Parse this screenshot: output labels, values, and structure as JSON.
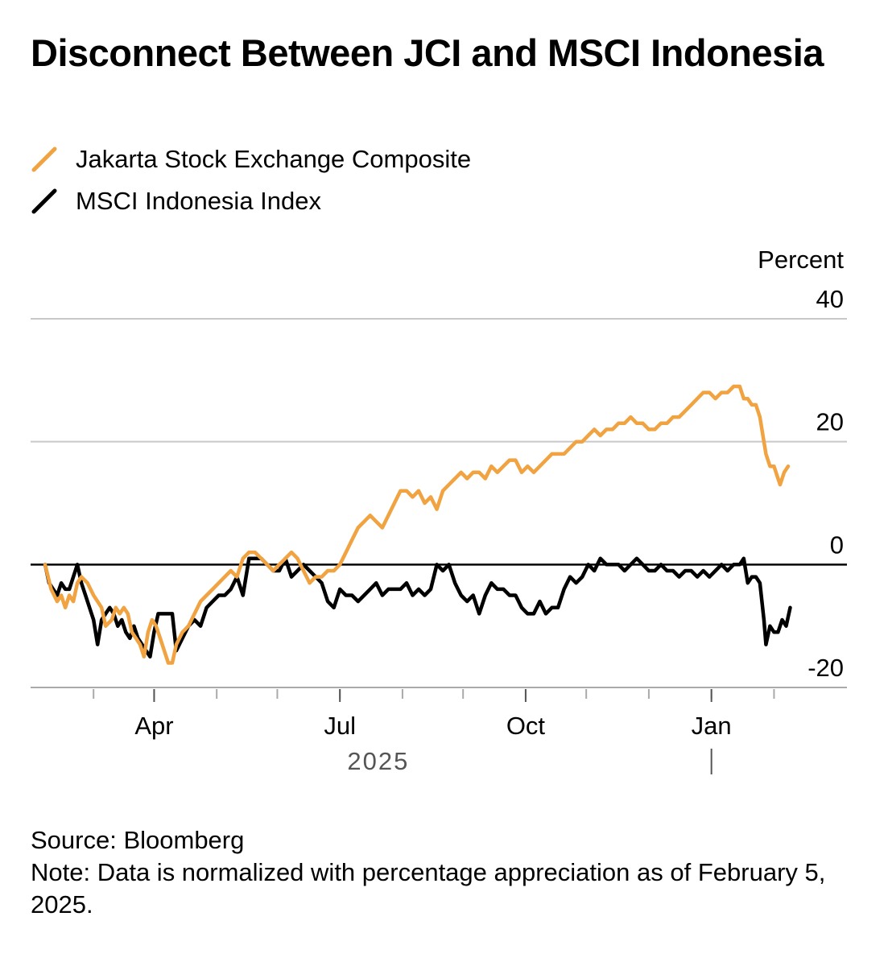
{
  "title": "Disconnect Between JCI and MSCI Indonesia",
  "legend": [
    {
      "label": "Jakarta Stock Exchange Composite",
      "color": "#f0a340"
    },
    {
      "label": "MSCI Indonesia Index",
      "color": "#000000"
    }
  ],
  "footer": {
    "source": "Source: Bloomberg",
    "note": "Note: Data is normalized with percentage appreciation as of February 5, 2025."
  },
  "chart_data": {
    "type": "line",
    "title": "Disconnect Between JCI and MSCI Indonesia",
    "ylabel": "Percent",
    "xlabel": "2025",
    "ylim": [
      -20,
      40
    ],
    "yticks": [
      40,
      20,
      0,
      -20
    ],
    "xlim": [
      0,
      370
    ],
    "x_unit": "days since Feb 5, 2025",
    "grid": true,
    "month_ticks": [
      24,
      54,
      85,
      115,
      146,
      177,
      207,
      238,
      268,
      299,
      330,
      361
    ],
    "x_tick_labels": [
      {
        "label": "Apr",
        "x": 54
      },
      {
        "label": "Jul",
        "x": 146
      },
      {
        "label": "Oct",
        "x": 238
      },
      {
        "label": "Jan",
        "x": 330
      }
    ],
    "year_label": {
      "label": "2025",
      "x": 165
    },
    "year_divider_x": 330,
    "series": [
      {
        "name": "Jakarta Stock Exchange Composite",
        "color": "#f0a340",
        "x": [
          0,
          3,
          6,
          8,
          10,
          12,
          14,
          16,
          18,
          21,
          24,
          26,
          28,
          30,
          33,
          35,
          37,
          39,
          41,
          43,
          45,
          47,
          49,
          51,
          53,
          55,
          57,
          59,
          61,
          63,
          65,
          68,
          71,
          74,
          77,
          80,
          83,
          86,
          89,
          92,
          95,
          98,
          101,
          104,
          107,
          110,
          113,
          116,
          119,
          122,
          125,
          128,
          131,
          134,
          137,
          140,
          143,
          146,
          149,
          152,
          155,
          158,
          161,
          164,
          167,
          170,
          173,
          176,
          179,
          182,
          185,
          188,
          191,
          194,
          197,
          200,
          203,
          206,
          209,
          212,
          215,
          218,
          221,
          224,
          227,
          230,
          233,
          236,
          239,
          242,
          245,
          248,
          251,
          254,
          257,
          260,
          263,
          266,
          269,
          272,
          275,
          278,
          281,
          284,
          287,
          290,
          293,
          296,
          299,
          302,
          305,
          308,
          311,
          314,
          317,
          320,
          323,
          326,
          329,
          332,
          335,
          338,
          341,
          344,
          346,
          348,
          350,
          352,
          354,
          356,
          357,
          359,
          361,
          363,
          364,
          366,
          368
        ],
        "values": [
          0,
          -4,
          -6,
          -5,
          -7,
          -5,
          -6,
          -3,
          -2,
          -3,
          -5,
          -6,
          -7,
          -10,
          -9,
          -7,
          -8,
          -7,
          -8,
          -11,
          -12,
          -13,
          -15,
          -11,
          -9,
          -10,
          -12,
          -14,
          -16,
          -16,
          -13,
          -11,
          -10,
          -8,
          -6,
          -5,
          -4,
          -3,
          -2,
          -1,
          -2,
          1,
          2,
          2,
          1,
          0,
          -1,
          0,
          1,
          2,
          1,
          -1,
          -3,
          -2,
          -2,
          -1,
          -1,
          0,
          2,
          4,
          6,
          7,
          8,
          7,
          6,
          8,
          10,
          12,
          12,
          11,
          12,
          10,
          11,
          9,
          12,
          13,
          14,
          15,
          14,
          15,
          15,
          14,
          16,
          15,
          16,
          17,
          17,
          15,
          16,
          15,
          16,
          17,
          18,
          18,
          18,
          19,
          20,
          20,
          21,
          22,
          21,
          22,
          22,
          23,
          23,
          24,
          23,
          23,
          22,
          22,
          23,
          23,
          24,
          24,
          25,
          26,
          27,
          28,
          28,
          27,
          28,
          28,
          29,
          29,
          27,
          27,
          26,
          26,
          24,
          20,
          18,
          16,
          16,
          14,
          13,
          15,
          16
        ]
      },
      {
        "name": "MSCI Indonesia Index",
        "color": "#000000",
        "x": [
          0,
          2,
          4,
          6,
          8,
          10,
          12,
          14,
          16,
          18,
          20,
          22,
          24,
          26,
          28,
          30,
          32,
          34,
          36,
          38,
          40,
          42,
          44,
          46,
          48,
          50,
          52,
          54,
          56,
          58,
          60,
          62,
          63,
          65,
          68,
          71,
          74,
          77,
          80,
          83,
          86,
          89,
          92,
          95,
          98,
          101,
          104,
          107,
          110,
          113,
          116,
          119,
          122,
          125,
          128,
          131,
          134,
          137,
          140,
          143,
          146,
          149,
          152,
          155,
          158,
          161,
          164,
          167,
          170,
          173,
          176,
          179,
          182,
          185,
          188,
          191,
          194,
          197,
          200,
          203,
          206,
          209,
          212,
          215,
          218,
          221,
          224,
          227,
          230,
          233,
          236,
          239,
          242,
          245,
          248,
          251,
          254,
          257,
          260,
          263,
          266,
          269,
          272,
          275,
          278,
          281,
          284,
          287,
          290,
          293,
          296,
          299,
          302,
          305,
          308,
          311,
          314,
          317,
          320,
          323,
          326,
          329,
          332,
          335,
          338,
          341,
          344,
          346,
          348,
          350,
          352,
          354,
          356,
          357,
          359,
          361,
          363,
          365,
          367,
          369
        ],
        "values": [
          0,
          -3,
          -4,
          -5,
          -3,
          -4,
          -4,
          -2,
          0,
          -3,
          -5,
          -7,
          -9,
          -13,
          -9,
          -8,
          -7,
          -8,
          -10,
          -9,
          -11,
          -12,
          -10,
          -12,
          -13,
          -14,
          -15,
          -11,
          -8,
          -8,
          -8,
          -8,
          -8,
          -14,
          -12,
          -10,
          -9,
          -10,
          -7,
          -6,
          -5,
          -5,
          -4,
          -2,
          -5,
          1,
          1,
          1,
          0,
          -1,
          -1,
          1,
          -2,
          -1,
          0,
          -1,
          -2,
          -3,
          -6,
          -7,
          -4,
          -5,
          -5,
          -6,
          -5,
          -4,
          -3,
          -5,
          -4,
          -4,
          -4,
          -3,
          -5,
          -4,
          -5,
          -4,
          0,
          -1,
          0,
          -3,
          -5,
          -6,
          -5,
          -8,
          -5,
          -3,
          -4,
          -4,
          -5,
          -5,
          -7,
          -8,
          -8,
          -6,
          -8,
          -7,
          -7,
          -4,
          -2,
          -3,
          -2,
          0,
          -1,
          1,
          0,
          0,
          0,
          -1,
          0,
          1,
          0,
          -1,
          -1,
          0,
          -1,
          -1,
          -2,
          -1,
          -1,
          -2,
          -1,
          -2,
          -1,
          0,
          -1,
          0,
          0,
          1,
          -3,
          -2,
          -2,
          -3,
          -9,
          -13,
          -10,
          -11,
          -11,
          -9,
          -10,
          -7
        ]
      }
    ]
  }
}
